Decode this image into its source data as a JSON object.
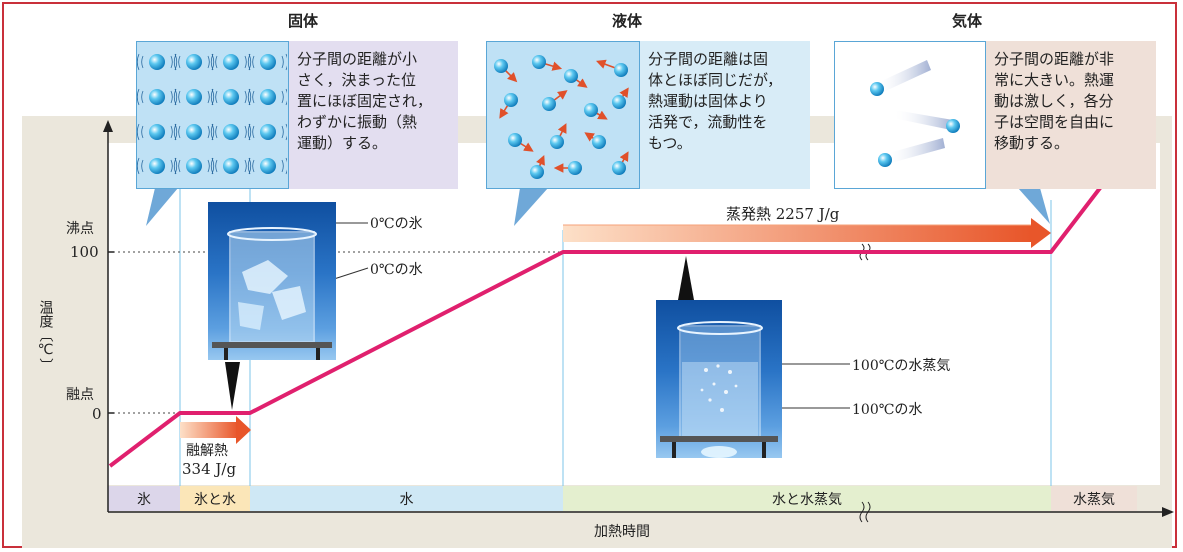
{
  "phases": {
    "solid": {
      "title": "固体",
      "desc": [
        "分子間の距離が小",
        "さく，決まった位",
        "置にほぼ固定され，",
        "わずかに振動（熱",
        "運動）する。"
      ]
    },
    "liquid": {
      "title": "液体",
      "desc": [
        "分子間の距離は固",
        "体とほぼ同じだが，",
        "熱運動は固体より",
        "活発で，流動性を",
        "もつ。"
      ]
    },
    "gas": {
      "title": "気体",
      "desc": [
        "分子間の距離が非",
        "常に大きい。熱運",
        "動は激しく，各分",
        "子は空間を自由に",
        "移動する。"
      ]
    }
  },
  "axes": {
    "y_label": "温度〔℃〕",
    "x_label": "加熱時間",
    "boiling_point_label": "沸点",
    "boiling_point_value": "100",
    "melting_point_label": "融点",
    "melting_point_value": "0"
  },
  "heat": {
    "vaporization": "蒸発熱 2257 J/g",
    "fusion_label": "融解熱",
    "fusion_value": "334 J/g"
  },
  "photo_labels": {
    "ice_0": "0℃の氷",
    "water_0": "0℃の水",
    "steam_100": "100℃の水蒸気",
    "water_100": "100℃の水"
  },
  "phase_strip": [
    "氷",
    "氷と水",
    "水",
    "水と水蒸気",
    "水蒸気"
  ],
  "colors": {
    "curve": "#e0206e",
    "border": "#c9303a",
    "arrow_orange": "#e8562a",
    "strip_ice": "#dcd6ea",
    "strip_ice_water": "#fbe6b8",
    "strip_water": "#cfe8f5",
    "strip_water_steam": "#e4efcf",
    "strip_steam": "#efe0d8"
  },
  "chart_data": {
    "type": "line",
    "series": [
      {
        "name": "",
        "points": [
          [
            "start",
            "-"
          ],
          [
            "melt-start",
            0
          ],
          [
            "melt-end",
            0
          ],
          [
            "boil-start",
            100
          ],
          [
            "boil-end",
            100
          ],
          [
            "end",
            "-"
          ]
        ]
      }
    ],
    "ylabel": "温度〔℃〕",
    "xlabel": "加熱時間",
    "y_ticks": [
      "0",
      "100"
    ]
  }
}
